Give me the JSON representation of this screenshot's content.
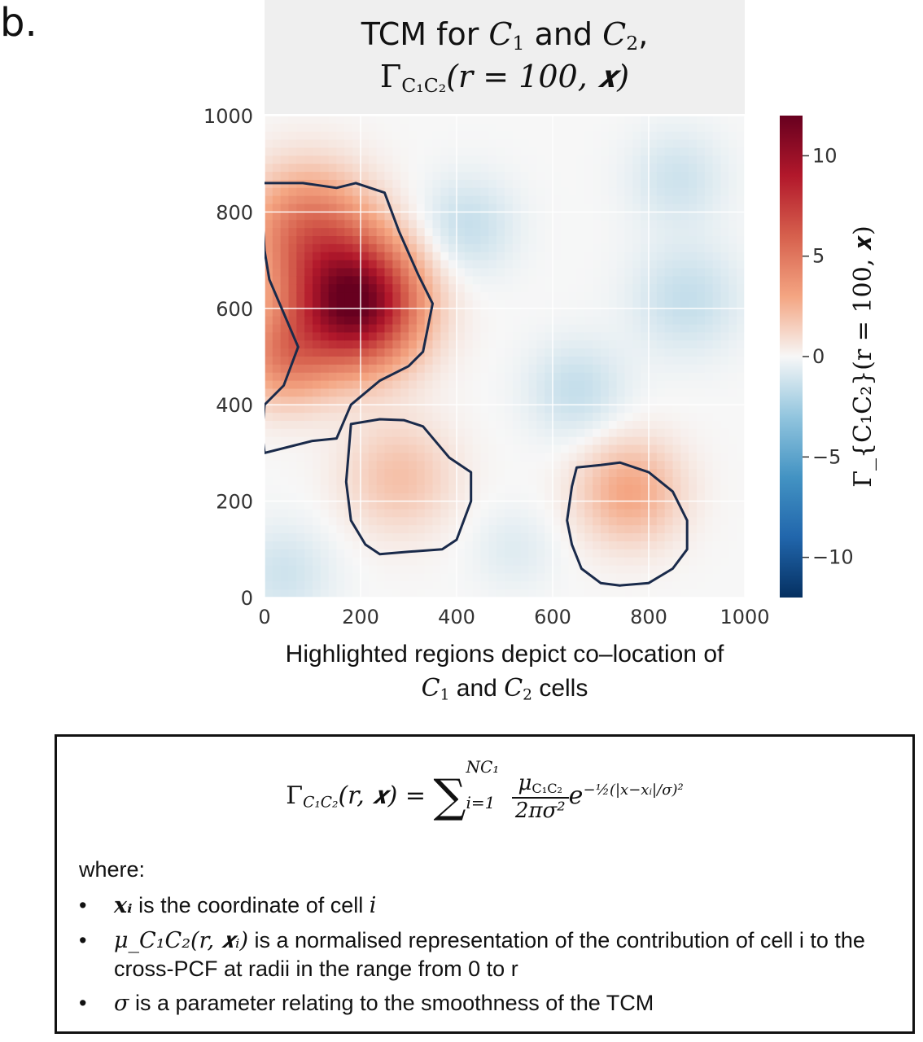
{
  "panel_label": "b.",
  "title": {
    "line1_prefix": "TCM for ",
    "c1": "C",
    "c1_sub": "1",
    "and": " and ",
    "c2": "C",
    "c2_sub": "2",
    "line1_suffix": ",",
    "line2": "Γ",
    "line2_sub": "C₁C₂",
    "line2_args": "(r = 100, 𝒙)"
  },
  "chart_data": {
    "type": "heatmap",
    "xlim": [
      0,
      1000
    ],
    "ylim": [
      0,
      1000
    ],
    "xticks": [
      "0",
      "200",
      "400",
      "600",
      "800",
      "1000"
    ],
    "yticks": [
      "0",
      "200",
      "400",
      "600",
      "800",
      "1000"
    ],
    "grid": true,
    "colormap": "RdBu_r",
    "colorbar": {
      "range": [
        -12,
        12
      ],
      "ticks": [
        "10",
        "5",
        "0",
        "−5",
        "−10"
      ],
      "tick_values": [
        10,
        5,
        0,
        -5,
        -10
      ],
      "label": "Γ_{C₁C₂}(r = 100, 𝒙)"
    },
    "blobs": [
      {
        "x": 190,
        "y": 610,
        "value": 11.8,
        "sigma": 90
      },
      {
        "x": 90,
        "y": 760,
        "value": 5,
        "sigma": 90
      },
      {
        "x": 40,
        "y": 500,
        "value": 4,
        "sigma": 70
      },
      {
        "x": 280,
        "y": 250,
        "value": 2,
        "sigma": 80
      },
      {
        "x": 760,
        "y": 220,
        "value": 3,
        "sigma": 75
      },
      {
        "x": 420,
        "y": 770,
        "value": -1.5,
        "sigma": 70
      },
      {
        "x": 650,
        "y": 430,
        "value": -1.5,
        "sigma": 70
      },
      {
        "x": 880,
        "y": 620,
        "value": -1.5,
        "sigma": 80
      },
      {
        "x": 860,
        "y": 870,
        "value": -1.2,
        "sigma": 70
      },
      {
        "x": 40,
        "y": 50,
        "value": -1.2,
        "sigma": 70
      },
      {
        "x": 520,
        "y": 100,
        "value": -0.7,
        "sigma": 60
      }
    ],
    "regions": [
      {
        "points": [
          [
            -5,
            860
          ],
          [
            80,
            860
          ],
          [
            150,
            850
          ],
          [
            190,
            860
          ],
          [
            250,
            840
          ],
          [
            280,
            760
          ],
          [
            320,
            670
          ],
          [
            350,
            610
          ],
          [
            330,
            510
          ],
          [
            300,
            480
          ],
          [
            240,
            450
          ],
          [
            180,
            400
          ],
          [
            150,
            330
          ],
          [
            100,
            325
          ],
          [
            60,
            315
          ],
          [
            0,
            300
          ],
          [
            -5,
            340
          ],
          [
            0,
            400
          ],
          [
            40,
            440
          ],
          [
            70,
            520
          ],
          [
            10,
            660
          ],
          [
            0,
            720
          ],
          [
            -5,
            800
          ]
        ]
      },
      {
        "points": [
          [
            180,
            360
          ],
          [
            240,
            370
          ],
          [
            290,
            368
          ],
          [
            330,
            355
          ],
          [
            385,
            290
          ],
          [
            430,
            260
          ],
          [
            430,
            200
          ],
          [
            400,
            120
          ],
          [
            370,
            100
          ],
          [
            300,
            95
          ],
          [
            240,
            90
          ],
          [
            210,
            110
          ],
          [
            180,
            160
          ],
          [
            170,
            240
          ],
          [
            175,
            300
          ]
        ]
      },
      {
        "points": [
          [
            650,
            270
          ],
          [
            700,
            275
          ],
          [
            740,
            280
          ],
          [
            800,
            260
          ],
          [
            850,
            220
          ],
          [
            880,
            160
          ],
          [
            880,
            100
          ],
          [
            850,
            60
          ],
          [
            800,
            30
          ],
          [
            740,
            25
          ],
          [
            700,
            30
          ],
          [
            660,
            60
          ],
          [
            640,
            110
          ],
          [
            630,
            160
          ],
          [
            640,
            230
          ]
        ]
      }
    ]
  },
  "caption": {
    "line1": "Highlighted regions depict co–location of",
    "line2_c1": "C",
    "line2_c1_sub": "1",
    "line2_and": " and ",
    "line2_c2": "C",
    "line2_c2_sub": "2",
    "line2_suffix": " cells"
  },
  "formula_box": {
    "lhs": "Γ",
    "lhs_sub": "C₁C₂",
    "lhs_args": "(r, 𝒙) = ",
    "sum": "∑",
    "sum_lower": "i=1",
    "sum_upper": "N",
    "sum_upper_sub": "C₁",
    "numerator": "μ",
    "numerator_sub": "C₁C₂",
    "denominator": "2πσ²",
    "exp_base": "e",
    "exponent": "−½(|x−xᵢ|/σ)²",
    "where": "where:",
    "bullets": [
      {
        "sym": "𝒙ᵢ",
        "text": " is the coordinate of cell ",
        "tail": "i"
      },
      {
        "sym": "μ_C₁C₂(r, 𝒙ᵢ)",
        "text": " is a normalised representation of the contribution of cell ",
        "tail": "i to the cross-PCF at radii in the range from 0 to r"
      },
      {
        "sym": "σ",
        "text": " is a parameter relating to the smoothness of the TCM",
        "tail": ""
      }
    ]
  }
}
